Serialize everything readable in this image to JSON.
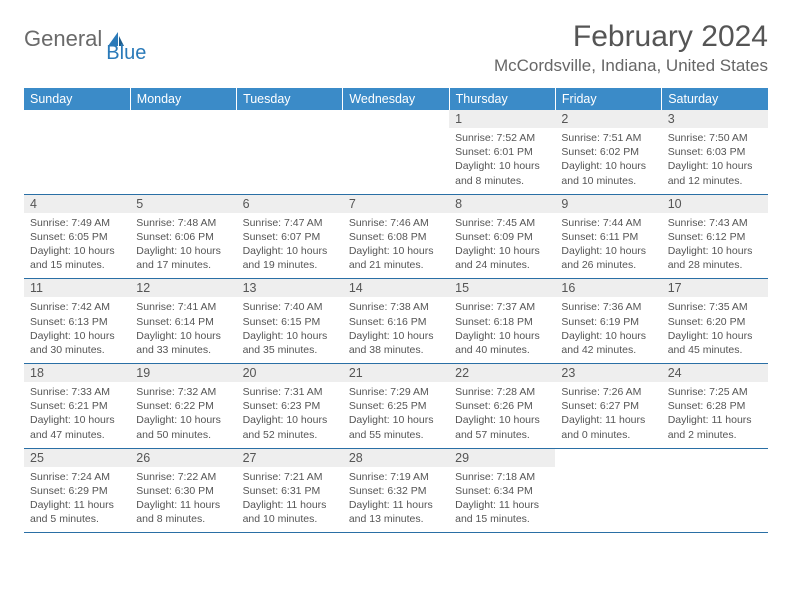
{
  "logo": {
    "text1": "General",
    "text2": "Blue"
  },
  "title": "February 2024",
  "location": "McCordsville, Indiana, United States",
  "colors": {
    "header_bg": "#3b8bc8",
    "header_text": "#ffffff",
    "daynum_bg": "#eeeeee",
    "row_divider": "#2a6fa5",
    "body_text": "#555555",
    "logo_gray": "#6a6a6a",
    "logo_blue": "#2a7ab9"
  },
  "typography": {
    "title_fontsize": 30,
    "location_fontsize": 17,
    "header_fontsize": 12.5,
    "daynum_fontsize": 12.5,
    "cell_fontsize": 10.5
  },
  "days_of_week": [
    "Sunday",
    "Monday",
    "Tuesday",
    "Wednesday",
    "Thursday",
    "Friday",
    "Saturday"
  ],
  "weeks": [
    [
      null,
      null,
      null,
      null,
      {
        "n": "1",
        "sr": "Sunrise: 7:52 AM",
        "ss": "Sunset: 6:01 PM",
        "dl": "Daylight: 10 hours and 8 minutes."
      },
      {
        "n": "2",
        "sr": "Sunrise: 7:51 AM",
        "ss": "Sunset: 6:02 PM",
        "dl": "Daylight: 10 hours and 10 minutes."
      },
      {
        "n": "3",
        "sr": "Sunrise: 7:50 AM",
        "ss": "Sunset: 6:03 PM",
        "dl": "Daylight: 10 hours and 12 minutes."
      }
    ],
    [
      {
        "n": "4",
        "sr": "Sunrise: 7:49 AM",
        "ss": "Sunset: 6:05 PM",
        "dl": "Daylight: 10 hours and 15 minutes."
      },
      {
        "n": "5",
        "sr": "Sunrise: 7:48 AM",
        "ss": "Sunset: 6:06 PM",
        "dl": "Daylight: 10 hours and 17 minutes."
      },
      {
        "n": "6",
        "sr": "Sunrise: 7:47 AM",
        "ss": "Sunset: 6:07 PM",
        "dl": "Daylight: 10 hours and 19 minutes."
      },
      {
        "n": "7",
        "sr": "Sunrise: 7:46 AM",
        "ss": "Sunset: 6:08 PM",
        "dl": "Daylight: 10 hours and 21 minutes."
      },
      {
        "n": "8",
        "sr": "Sunrise: 7:45 AM",
        "ss": "Sunset: 6:09 PM",
        "dl": "Daylight: 10 hours and 24 minutes."
      },
      {
        "n": "9",
        "sr": "Sunrise: 7:44 AM",
        "ss": "Sunset: 6:11 PM",
        "dl": "Daylight: 10 hours and 26 minutes."
      },
      {
        "n": "10",
        "sr": "Sunrise: 7:43 AM",
        "ss": "Sunset: 6:12 PM",
        "dl": "Daylight: 10 hours and 28 minutes."
      }
    ],
    [
      {
        "n": "11",
        "sr": "Sunrise: 7:42 AM",
        "ss": "Sunset: 6:13 PM",
        "dl": "Daylight: 10 hours and 30 minutes."
      },
      {
        "n": "12",
        "sr": "Sunrise: 7:41 AM",
        "ss": "Sunset: 6:14 PM",
        "dl": "Daylight: 10 hours and 33 minutes."
      },
      {
        "n": "13",
        "sr": "Sunrise: 7:40 AM",
        "ss": "Sunset: 6:15 PM",
        "dl": "Daylight: 10 hours and 35 minutes."
      },
      {
        "n": "14",
        "sr": "Sunrise: 7:38 AM",
        "ss": "Sunset: 6:16 PM",
        "dl": "Daylight: 10 hours and 38 minutes."
      },
      {
        "n": "15",
        "sr": "Sunrise: 7:37 AM",
        "ss": "Sunset: 6:18 PM",
        "dl": "Daylight: 10 hours and 40 minutes."
      },
      {
        "n": "16",
        "sr": "Sunrise: 7:36 AM",
        "ss": "Sunset: 6:19 PM",
        "dl": "Daylight: 10 hours and 42 minutes."
      },
      {
        "n": "17",
        "sr": "Sunrise: 7:35 AM",
        "ss": "Sunset: 6:20 PM",
        "dl": "Daylight: 10 hours and 45 minutes."
      }
    ],
    [
      {
        "n": "18",
        "sr": "Sunrise: 7:33 AM",
        "ss": "Sunset: 6:21 PM",
        "dl": "Daylight: 10 hours and 47 minutes."
      },
      {
        "n": "19",
        "sr": "Sunrise: 7:32 AM",
        "ss": "Sunset: 6:22 PM",
        "dl": "Daylight: 10 hours and 50 minutes."
      },
      {
        "n": "20",
        "sr": "Sunrise: 7:31 AM",
        "ss": "Sunset: 6:23 PM",
        "dl": "Daylight: 10 hours and 52 minutes."
      },
      {
        "n": "21",
        "sr": "Sunrise: 7:29 AM",
        "ss": "Sunset: 6:25 PM",
        "dl": "Daylight: 10 hours and 55 minutes."
      },
      {
        "n": "22",
        "sr": "Sunrise: 7:28 AM",
        "ss": "Sunset: 6:26 PM",
        "dl": "Daylight: 10 hours and 57 minutes."
      },
      {
        "n": "23",
        "sr": "Sunrise: 7:26 AM",
        "ss": "Sunset: 6:27 PM",
        "dl": "Daylight: 11 hours and 0 minutes."
      },
      {
        "n": "24",
        "sr": "Sunrise: 7:25 AM",
        "ss": "Sunset: 6:28 PM",
        "dl": "Daylight: 11 hours and 2 minutes."
      }
    ],
    [
      {
        "n": "25",
        "sr": "Sunrise: 7:24 AM",
        "ss": "Sunset: 6:29 PM",
        "dl": "Daylight: 11 hours and 5 minutes."
      },
      {
        "n": "26",
        "sr": "Sunrise: 7:22 AM",
        "ss": "Sunset: 6:30 PM",
        "dl": "Daylight: 11 hours and 8 minutes."
      },
      {
        "n": "27",
        "sr": "Sunrise: 7:21 AM",
        "ss": "Sunset: 6:31 PM",
        "dl": "Daylight: 11 hours and 10 minutes."
      },
      {
        "n": "28",
        "sr": "Sunrise: 7:19 AM",
        "ss": "Sunset: 6:32 PM",
        "dl": "Daylight: 11 hours and 13 minutes."
      },
      {
        "n": "29",
        "sr": "Sunrise: 7:18 AM",
        "ss": "Sunset: 6:34 PM",
        "dl": "Daylight: 11 hours and 15 minutes."
      },
      null,
      null
    ]
  ]
}
